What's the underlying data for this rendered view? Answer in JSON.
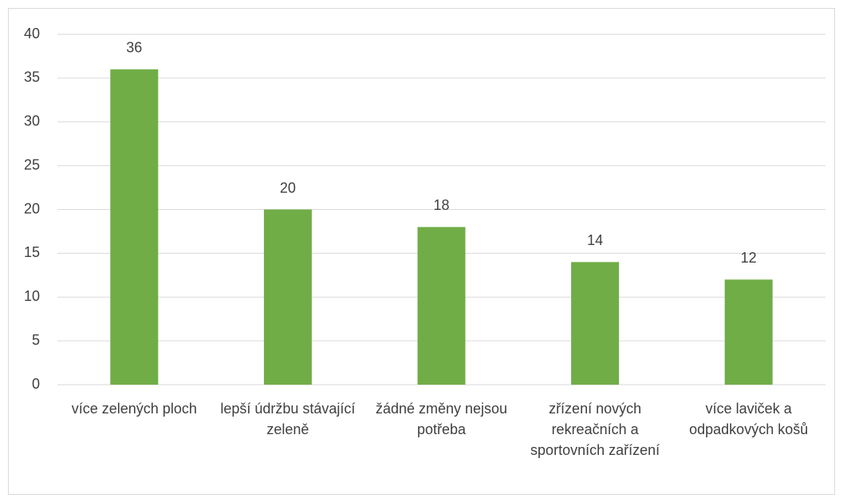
{
  "chart_data": {
    "type": "bar",
    "categories": [
      "více zelených ploch",
      "lepší údržbu stávající zeleně",
      "žádné změny nejsou potřeba",
      "zřízení nových rekreačních a sportovních zařízení",
      "více laviček a odpadkových košů"
    ],
    "values": [
      36,
      20,
      18,
      14,
      12
    ],
    "color": "#70ad47",
    "ylim": [
      0,
      40
    ],
    "yticks": [
      0,
      5,
      10,
      15,
      20,
      25,
      30,
      35,
      40
    ],
    "grid": true
  }
}
